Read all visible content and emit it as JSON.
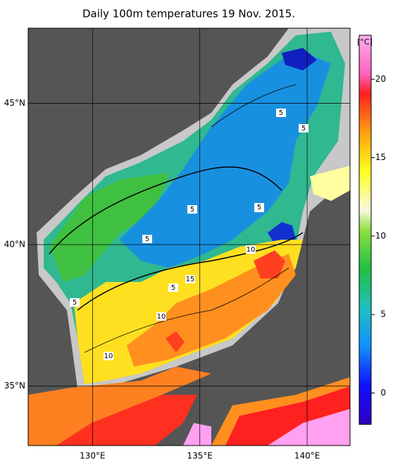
{
  "map": {
    "title": "Daily 100m temperatures 19 Nov. 2015.",
    "xlim": [
      127,
      142
    ],
    "ylim": [
      32.9,
      47.65
    ],
    "xticks": [
      {
        "value": 130,
        "label": "130°E"
      },
      {
        "value": 135,
        "label": "135°E"
      },
      {
        "value": 140,
        "label": "140°E"
      }
    ],
    "yticks": [
      {
        "value": 35,
        "label": "35°N"
      },
      {
        "value": 40,
        "label": "40°N"
      },
      {
        "value": 45,
        "label": "45°N"
      }
    ],
    "colorbar": {
      "label": "[°C]",
      "lim": [
        -2,
        22.8
      ],
      "ticks": [
        0,
        5,
        10,
        15,
        20
      ]
    },
    "contour_labels": [
      5,
      5,
      5,
      5,
      5,
      5,
      10,
      15,
      5,
      5,
      10,
      10
    ]
  }
}
